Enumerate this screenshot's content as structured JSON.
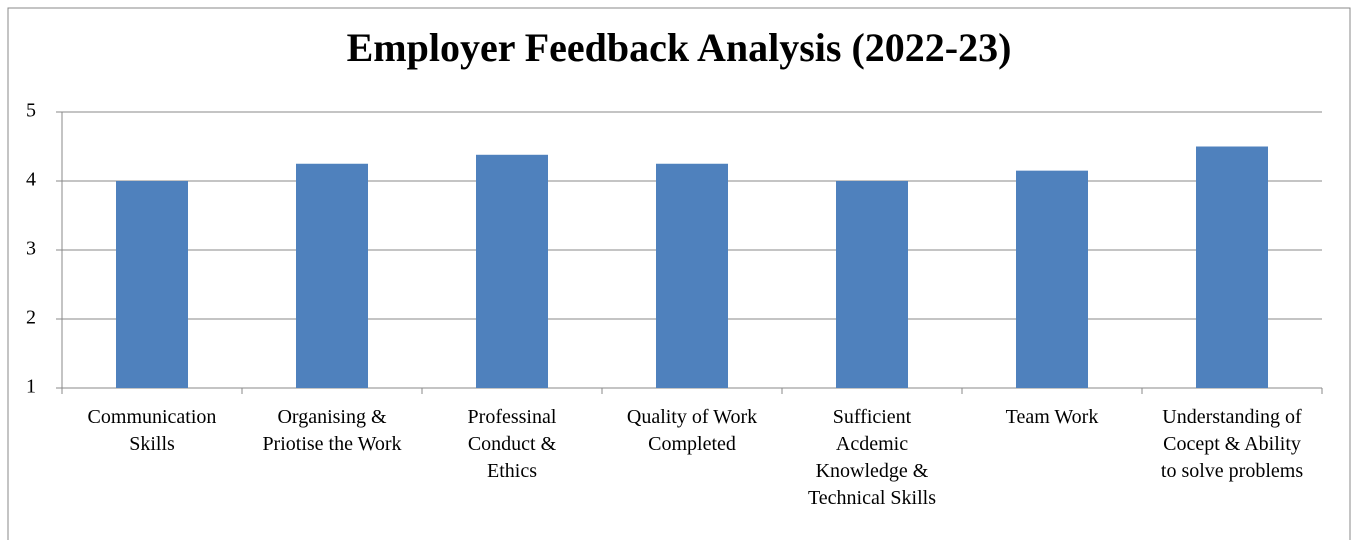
{
  "chart_data": {
    "type": "bar",
    "title": "Employer Feedback Analysis (2022-23)",
    "categories": [
      "Communication Skills",
      "Organising & Priotise the Work",
      "Professinal Conduct & Ethics",
      "Quality of Work Completed",
      "Sufficient Acdemic Knowledge & Technical Skills",
      "Team Work",
      "Understanding of Cocept & Ability to solve problems"
    ],
    "values": [
      4.0,
      4.25,
      4.38,
      4.25,
      4.0,
      4.15,
      4.5
    ],
    "color": "#4f81bd",
    "ylim": [
      1,
      5
    ],
    "yticks": [
      1,
      2,
      3,
      4,
      5
    ],
    "grid": true
  }
}
